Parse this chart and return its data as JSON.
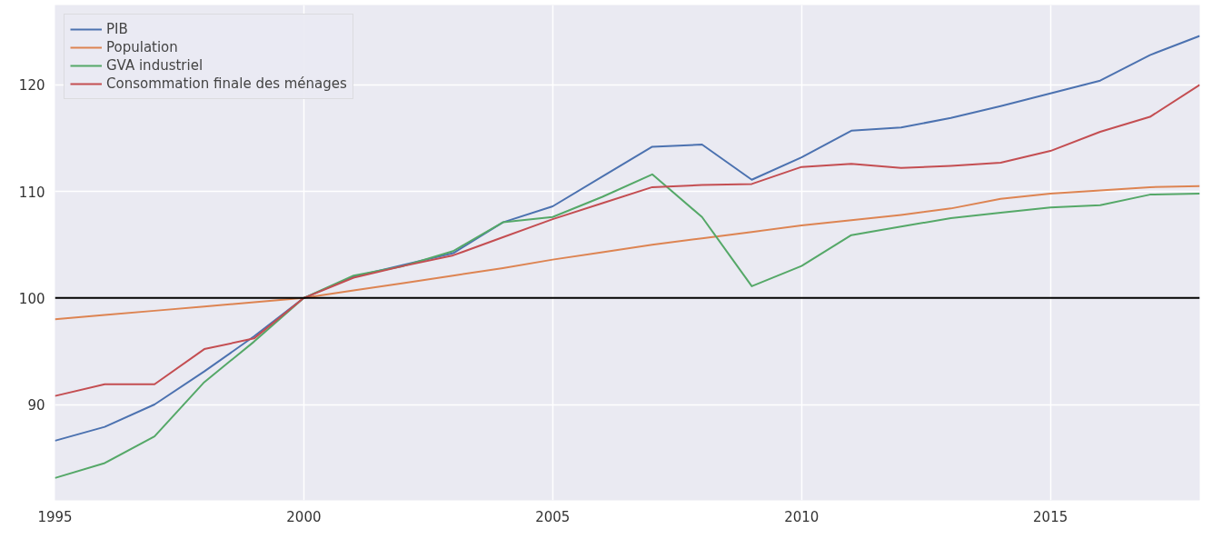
{
  "chart_data": {
    "type": "line",
    "x": [
      1995,
      1996,
      1997,
      1998,
      1999,
      2000,
      2001,
      2002,
      2003,
      2004,
      2005,
      2006,
      2007,
      2008,
      2009,
      2010,
      2011,
      2012,
      2013,
      2014,
      2015,
      2016,
      2017,
      2018
    ],
    "series": [
      {
        "name": "PIB",
        "color": "#4c72b0",
        "values": [
          86.6,
          87.9,
          90.0,
          93.1,
          96.4,
          100,
          102.0,
          103.1,
          104.2,
          107.1,
          108.6,
          111.4,
          114.2,
          114.4,
          111.1,
          113.2,
          115.7,
          116.0,
          116.9,
          118.0,
          119.2,
          120.4,
          122.8,
          124.6
        ]
      },
      {
        "name": "Population",
        "color": "#dd8452",
        "values": [
          98.0,
          98.4,
          98.8,
          99.2,
          99.6,
          100,
          100.7,
          101.4,
          102.1,
          102.8,
          103.6,
          104.3,
          105.0,
          105.6,
          106.2,
          106.8,
          107.3,
          107.8,
          108.4,
          109.3,
          109.8,
          110.1,
          110.4,
          110.5
        ]
      },
      {
        "name": "GVA industriel",
        "color": "#55a868",
        "values": [
          83.1,
          84.5,
          87.0,
          92.1,
          95.9,
          100,
          102.1,
          103.0,
          104.4,
          107.1,
          107.6,
          109.5,
          111.6,
          107.6,
          101.1,
          103.0,
          105.9,
          106.7,
          107.5,
          108.0,
          108.5,
          108.7,
          109.7,
          109.8
        ]
      },
      {
        "name": "Consommation finale des ménages",
        "color": "#c44e52",
        "values": [
          90.8,
          91.9,
          91.9,
          95.2,
          96.2,
          100,
          101.9,
          103.0,
          104.0,
          105.7,
          107.4,
          108.9,
          110.4,
          110.6,
          110.7,
          112.3,
          112.6,
          112.2,
          112.4,
          112.7,
          113.8,
          115.6,
          117.0,
          120.0
        ]
      }
    ],
    "xlim": [
      1995,
      2018
    ],
    "ylim": [
      81,
      127.5
    ],
    "xticks": [
      1995,
      2000,
      2005,
      2010,
      2015
    ],
    "yticks": [
      90,
      100,
      110,
      120
    ],
    "ref_lines": [
      {
        "axis": "y",
        "value": 100,
        "color": "#000000"
      }
    ],
    "grid": true,
    "legend": "top left"
  }
}
